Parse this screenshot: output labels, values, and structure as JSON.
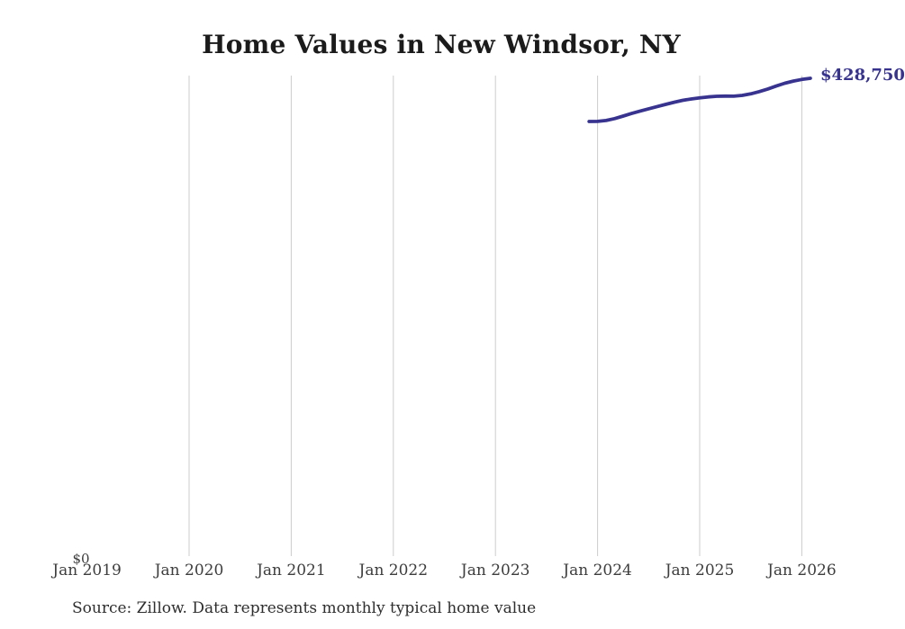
{
  "chart": {
    "title": "Home Values in New Windsor, NY",
    "y_zero_label": "$0",
    "end_value_label": "$428,750",
    "source_note": "Source: Zillow. Data represents monthly typical home value"
  },
  "chart_data": {
    "type": "line",
    "title": "Home Values in New Windsor, NY",
    "xlabel": "",
    "ylabel": "",
    "x_tick_labels": [
      "Jan 2019",
      "Jan 2020",
      "Jan 2021",
      "Jan 2022",
      "Jan 2023",
      "Jan 2024",
      "Jan 2025",
      "Jan 2026"
    ],
    "ylim": [
      0,
      431200
    ],
    "grid": "vertical-only",
    "legend": "none",
    "line_color": "#37338f",
    "gridline_color": "#cccccc",
    "last_point_label": "$428,750",
    "series": [
      {
        "name": "Monthly typical home value",
        "x": [
          "2023-12",
          "2024-01",
          "2024-02",
          "2024-03",
          "2024-04",
          "2024-05",
          "2024-06",
          "2024-07",
          "2024-08",
          "2024-09",
          "2024-10",
          "2024-11",
          "2024-12",
          "2025-01",
          "2025-02",
          "2025-03",
          "2025-04",
          "2025-05",
          "2025-06",
          "2025-07",
          "2025-08",
          "2025-09",
          "2025-10",
          "2025-11",
          "2025-12",
          "2026-01",
          "2026-02"
        ],
        "values": [
          390000,
          390100,
          390900,
          392600,
          394900,
          397200,
          399400,
          401400,
          403400,
          405400,
          407300,
          409000,
          410200,
          411200,
          412100,
          412600,
          412800,
          412700,
          413400,
          414800,
          416800,
          419200,
          421800,
          424300,
          426300,
          427700,
          428750
        ]
      }
    ]
  }
}
